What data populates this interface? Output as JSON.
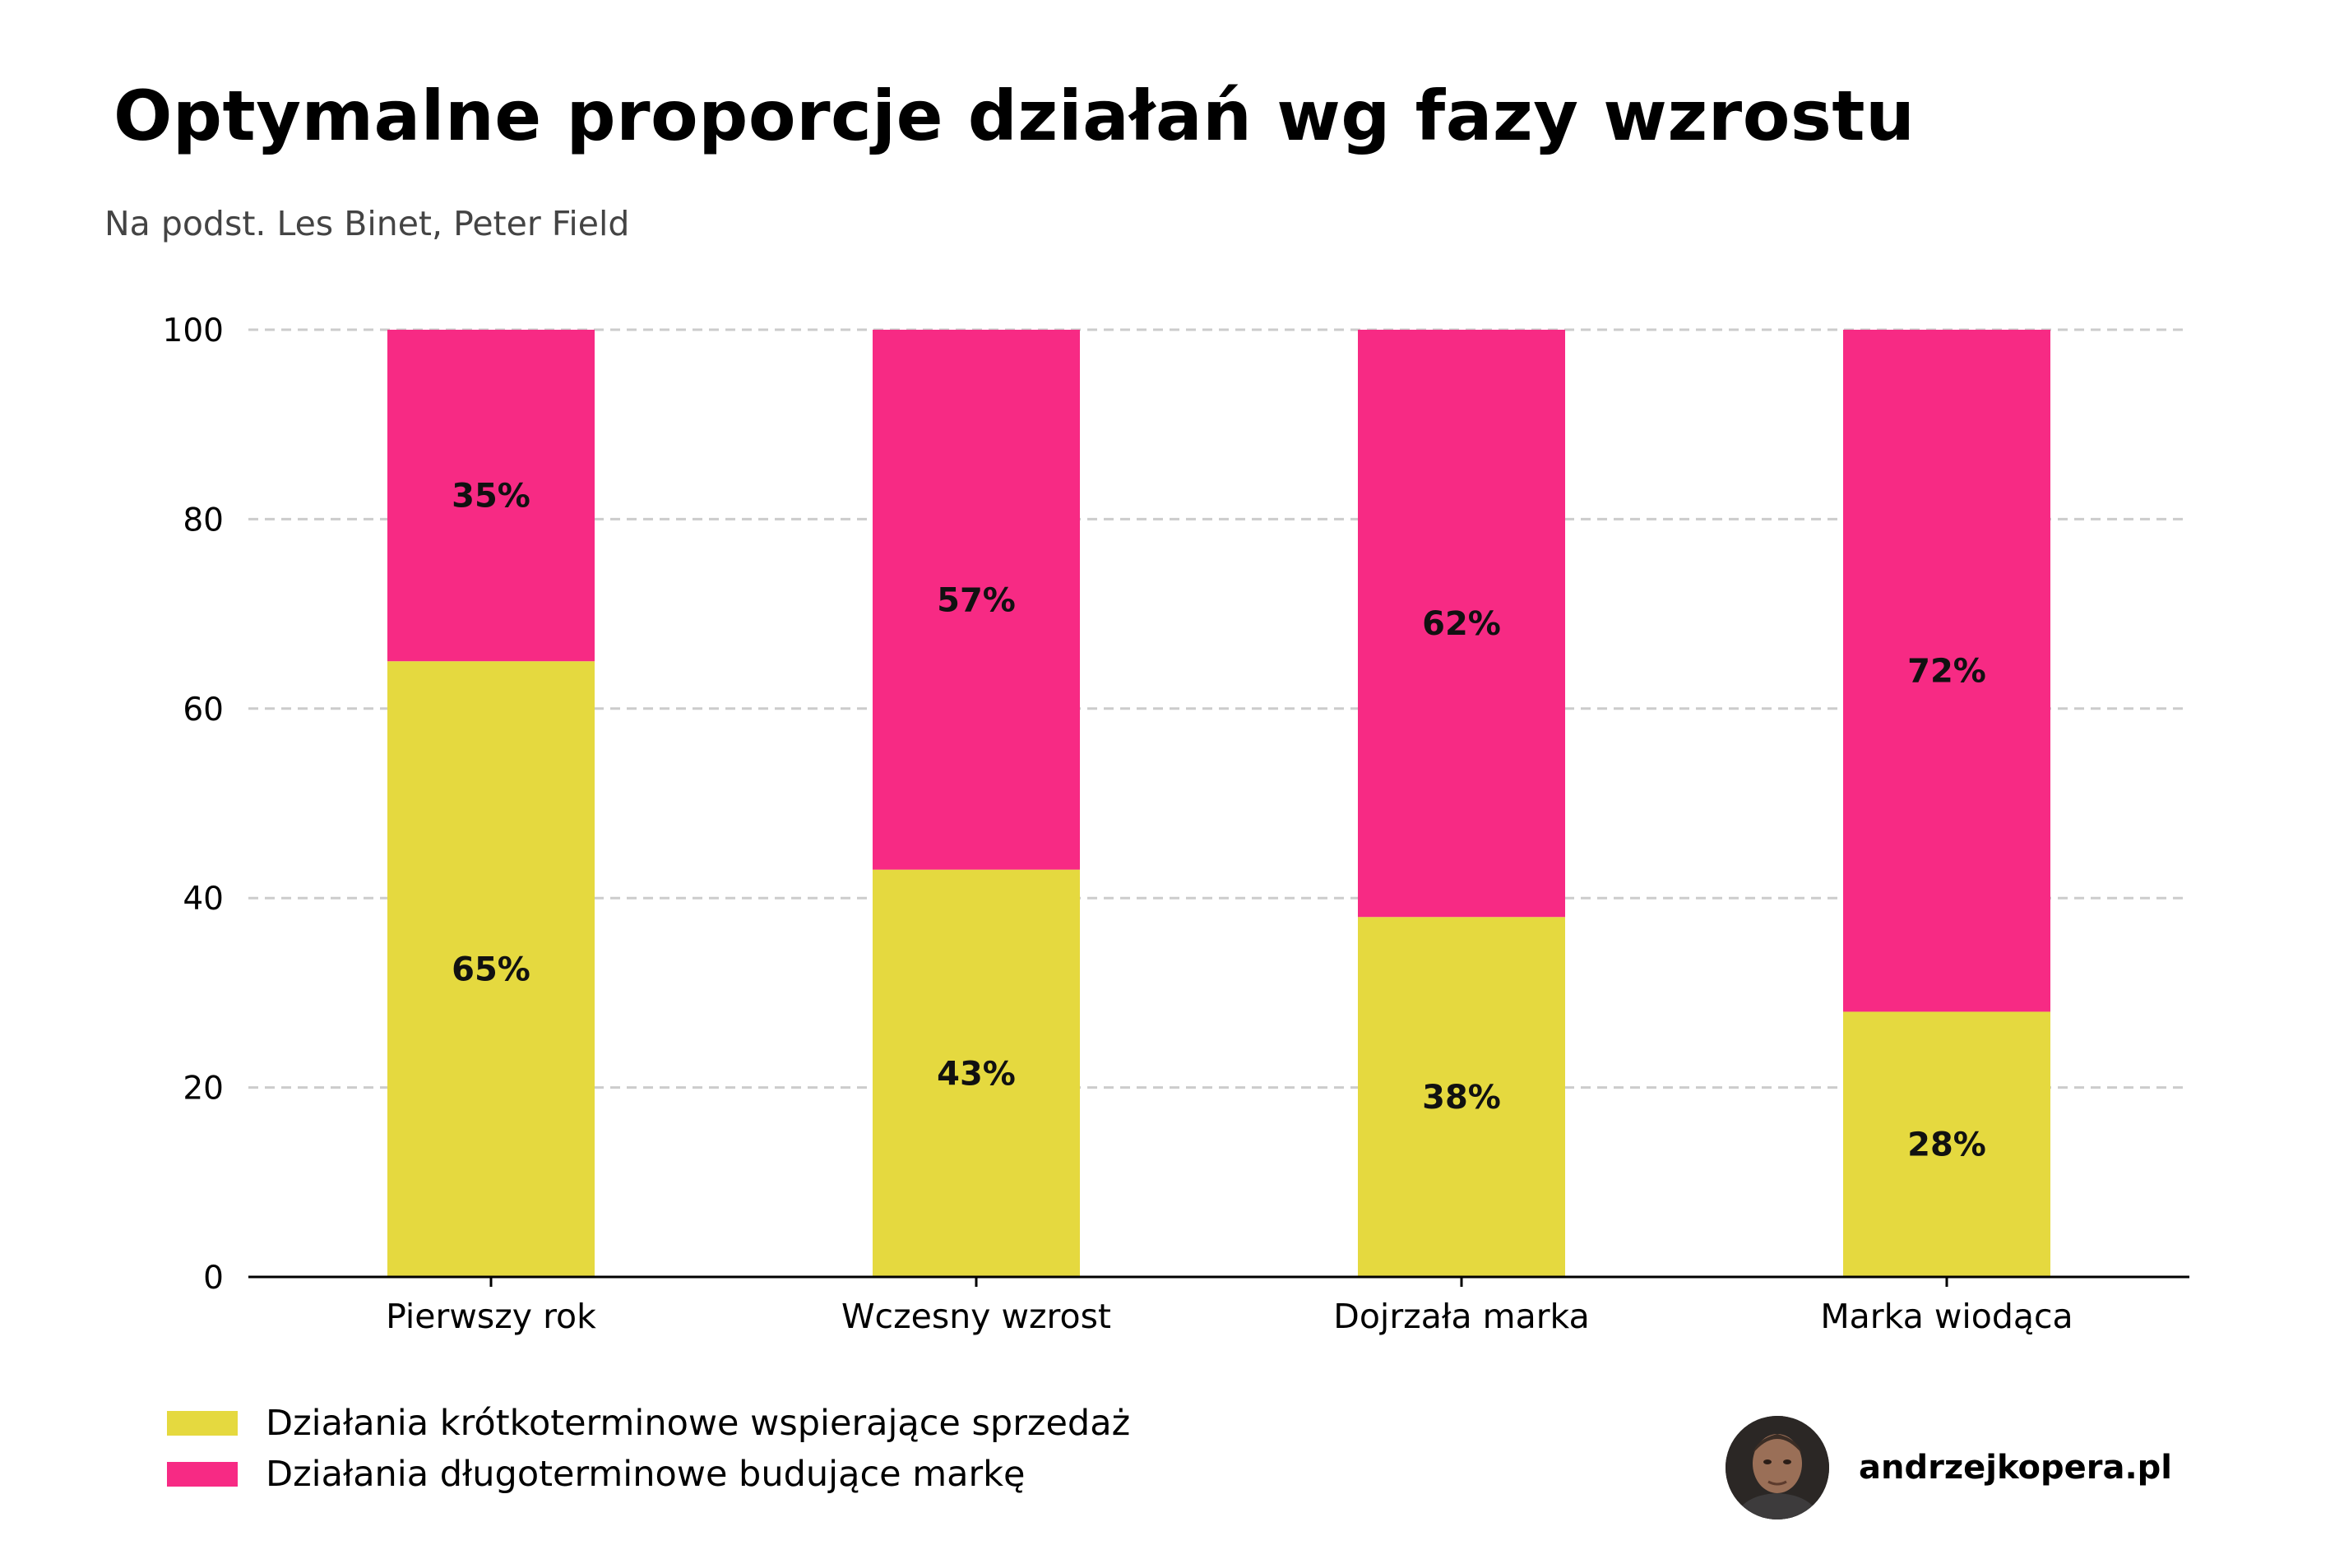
{
  "title": "Optymalne proporcje działań wg fazy wzrostu",
  "subtitle": "Na podst. Les Binet, Peter Field",
  "colors": {
    "short_term": "#E5D93F",
    "long_term": "#F72A84",
    "grid": "#cccccc",
    "axis": "#000000"
  },
  "chart_data": {
    "type": "bar",
    "stacked": true,
    "title": "Optymalne proporcje działań wg fazy wzrostu",
    "xlabel": "",
    "ylabel": "",
    "ylim": [
      0,
      100
    ],
    "yticks": [
      0,
      20,
      40,
      60,
      80,
      100
    ],
    "grid": true,
    "categories": [
      "Pierwszy rok",
      "Wczesny wzrost",
      "Dojrzała marka",
      "Marka wiodąca"
    ],
    "series": [
      {
        "name": "Działania krótkoterminowe wspierające sprzedaż",
        "values": [
          65,
          43,
          38,
          28
        ],
        "labels": [
          "65%",
          "43%",
          "38%",
          "28%"
        ]
      },
      {
        "name": "Działania długoterminowe budujące markę",
        "values": [
          35,
          57,
          62,
          72
        ],
        "labels": [
          "35%",
          "57%",
          "62%",
          "72%"
        ]
      }
    ],
    "legend": "bottom-left"
  },
  "brand": {
    "name": "andrzejkopera.pl",
    "avatar_icon": "author-photo-avatar"
  }
}
